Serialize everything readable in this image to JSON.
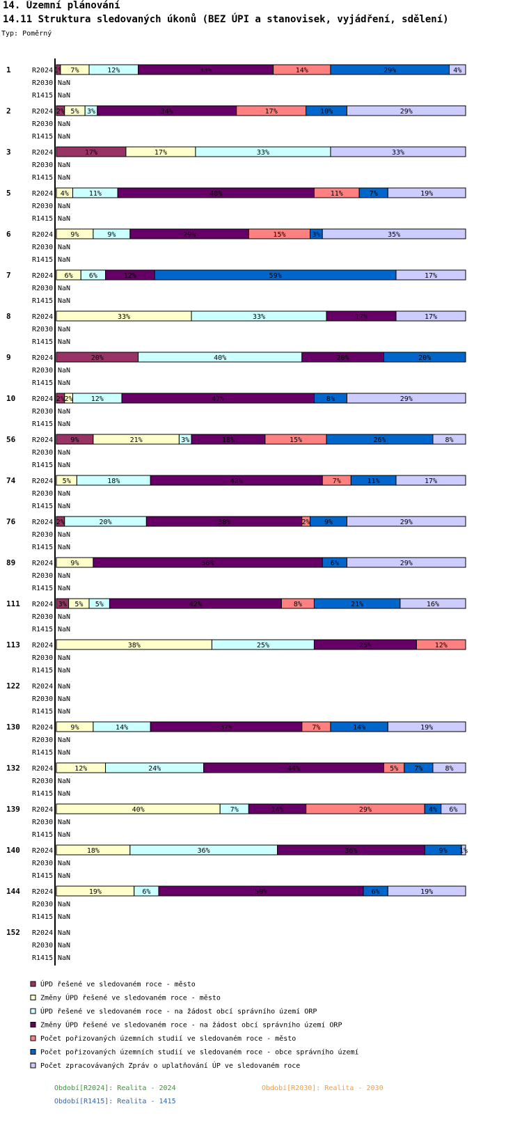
{
  "header": {
    "section": "14. Územní plánování",
    "subtitle": "14.11 Struktura sledovaných úkonů (BEZ ÚPI a stanovisek, vyjádření, sdělení)",
    "type_line": "Typ: Poměrný"
  },
  "chart_data": {
    "type": "bar",
    "stacked": true,
    "orientation": "horizontal",
    "normalized": true,
    "title": "14.11 Struktura sledovaných úkonů (BEZ ÚPI a stanovisek, vyjádření, sdělení)",
    "missing_label": "NaN",
    "series": [
      {
        "name": "ÚPD řešené ve sledovaném roce - město",
        "color": "#993366"
      },
      {
        "name": "Změny ÚPD řešené ve sledovaném roce - město",
        "color": "#ffffcc"
      },
      {
        "name": "ÚPD řešené ve sledovaném roce - na žádost obcí správního území ORP",
        "color": "#ccffff"
      },
      {
        "name": "Změny ÚPD řešené ve sledovaném roce - na žádost obcí správního území ORP",
        "color": "#660066"
      },
      {
        "name": "Počet pořizovaných územních studií ve sledovaném roce - město",
        "color": "#ff8080"
      },
      {
        "name": "Počet pořizovaných územních studií ve sledovaném roce - obce správního území",
        "color": "#0066cc"
      },
      {
        "name": "Počet zpracovávaných Zpráv o uplatňování ÚP ve sledovaném roce",
        "color": "#ccccff"
      }
    ],
    "periods": [
      "R2024",
      "R2030",
      "R1415"
    ],
    "groups": [
      {
        "label": "1",
        "R2024": [
          1,
          7,
          12,
          33,
          14,
          29,
          4
        ]
      },
      {
        "label": "2",
        "R2024": [
          2,
          5,
          3,
          34,
          17,
          10,
          29
        ]
      },
      {
        "label": "3",
        "R2024": [
          17,
          17,
          33,
          0,
          0,
          0,
          33
        ]
      },
      {
        "label": "5",
        "R2024": [
          0,
          4,
          11,
          48,
          11,
          7,
          19
        ]
      },
      {
        "label": "6",
        "R2024": [
          0,
          9,
          9,
          29,
          15,
          3,
          35
        ]
      },
      {
        "label": "7",
        "R2024": [
          0,
          6,
          6,
          12,
          0,
          59,
          17
        ]
      },
      {
        "label": "8",
        "R2024": [
          0,
          33,
          33,
          17,
          0,
          0,
          17
        ]
      },
      {
        "label": "9",
        "R2024": [
          20,
          0,
          40,
          20,
          0,
          20,
          0
        ]
      },
      {
        "label": "10",
        "R2024": [
          2,
          2,
          12,
          47,
          0,
          8,
          29
        ]
      },
      {
        "label": "56",
        "R2024": [
          9,
          21,
          3,
          18,
          15,
          26,
          8
        ]
      },
      {
        "label": "74",
        "R2024": [
          0,
          5,
          18,
          42,
          7,
          11,
          17
        ]
      },
      {
        "label": "76",
        "R2024": [
          2,
          0,
          20,
          38,
          2,
          9,
          29
        ]
      },
      {
        "label": "89",
        "R2024": [
          0,
          9,
          0,
          56,
          0,
          6,
          29
        ]
      },
      {
        "label": "111",
        "R2024": [
          3,
          5,
          5,
          42,
          8,
          21,
          16
        ]
      },
      {
        "label": "113",
        "R2024": [
          0,
          38,
          25,
          25,
          12,
          0,
          0
        ]
      },
      {
        "label": "122",
        "R2024": null
      },
      {
        "label": "130",
        "R2024": [
          0,
          9,
          14,
          37,
          7,
          14,
          19
        ]
      },
      {
        "label": "132",
        "R2024": [
          0,
          12,
          24,
          44,
          5,
          7,
          8
        ]
      },
      {
        "label": "139",
        "R2024": [
          0,
          40,
          7,
          14,
          29,
          4,
          6
        ]
      },
      {
        "label": "140",
        "R2024": [
          0,
          18,
          36,
          36,
          0,
          9,
          1
        ]
      },
      {
        "label": "144",
        "R2024": [
          0,
          19,
          6,
          50,
          0,
          6,
          19
        ]
      },
      {
        "label": "152",
        "R2024": null
      }
    ]
  },
  "footer": {
    "periods_legend": [
      {
        "text": "Období[R2024]: Realita - 2024",
        "color": "#339933"
      },
      {
        "text": "Období[R2030]: Realita - 2030",
        "color": "#ff9933"
      },
      {
        "text": "Období[R1415]: Realita - 1415",
        "color": "#3366aa"
      }
    ]
  }
}
